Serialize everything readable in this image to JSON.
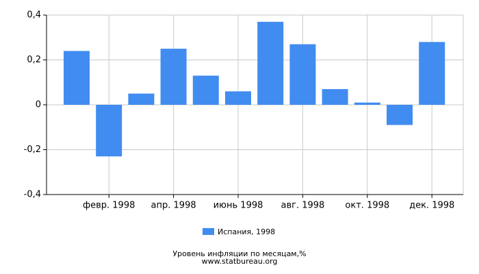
{
  "chart_data": {
    "type": "bar",
    "categories": [
      null,
      "февр. 1998",
      null,
      "апр. 1998",
      null,
      "июнь 1998",
      null,
      "авг. 1998",
      null,
      "окт. 1998",
      null,
      "дек. 1998"
    ],
    "series": [
      {
        "name": "Испания, 1998",
        "color": "#418cf0",
        "values": [
          0.24,
          -0.23,
          0.05,
          0.25,
          0.13,
          0.06,
          0.37,
          0.27,
          0.07,
          0.01,
          -0.09,
          0.28
        ]
      }
    ],
    "ylim": [
      -0.4,
      0.4
    ],
    "yticks": [
      {
        "value": -0.4,
        "label": "-0,4"
      },
      {
        "value": -0.2,
        "label": "-0,2"
      },
      0,
      {
        "value": 0.2,
        "label": "0,2"
      },
      {
        "value": 0.4,
        "label": "0,4"
      }
    ],
    "grid": true,
    "title": "Уровень инфляции по месяцам,%",
    "subtitle": "www.statbureau.org"
  }
}
